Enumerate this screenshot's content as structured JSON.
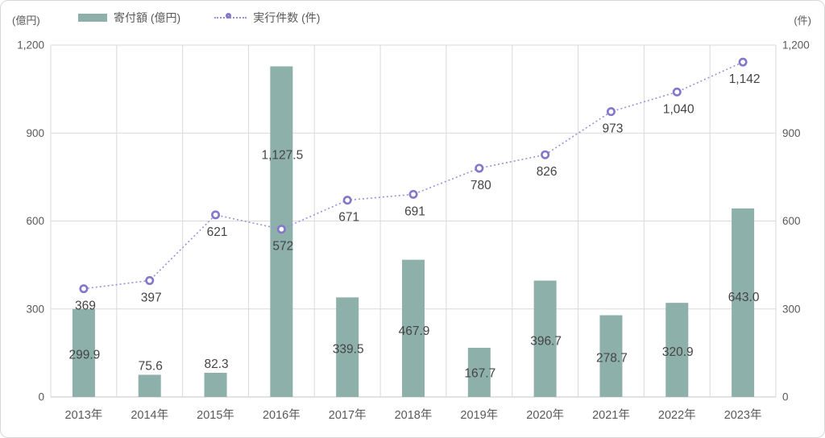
{
  "chart_data": {
    "type": "bar+line combo",
    "categories": [
      "2013年",
      "2014年",
      "2015年",
      "2016年",
      "2017年",
      "2018年",
      "2019年",
      "2020年",
      "2021年",
      "2022年",
      "2023年"
    ],
    "series": [
      {
        "name": "寄付額 (億円)",
        "type": "bar",
        "axis": "left",
        "values": [
          299.9,
          75.6,
          82.3,
          1127.5,
          339.5,
          467.9,
          167.7,
          396.7,
          278.7,
          320.9,
          643.0
        ],
        "value_labels": [
          "299.9",
          "75.6",
          "82.3",
          "1,127.5",
          "339.5",
          "467.9",
          "167.7",
          "396.7",
          "278.7",
          "320.9",
          "643.0"
        ],
        "color": "#8eb0aa"
      },
      {
        "name": "実行件数 (件)",
        "type": "line",
        "axis": "right",
        "values": [
          369,
          397,
          621,
          572,
          671,
          691,
          780,
          826,
          973,
          1040,
          1142
        ],
        "value_labels": [
          "369",
          "397",
          "621",
          "572",
          "671",
          "691",
          "780",
          "826",
          "973",
          "1,040",
          "1,142"
        ],
        "line_color": "#9c91db",
        "marker_color": "#8576c9",
        "marker_fill": "#ffffff",
        "line_style": "dotted"
      }
    ],
    "left_axis": {
      "unit": "(億円)",
      "min": 0,
      "max": 1200,
      "tick_step": 300,
      "tick_labels": [
        "0",
        "300",
        "600",
        "900",
        "1,200"
      ]
    },
    "right_axis": {
      "unit": "(件)",
      "min": 0,
      "max": 1200,
      "tick_step": 300,
      "tick_labels": [
        "0",
        "300",
        "600",
        "900",
        "1,200"
      ]
    },
    "legend_position": "top",
    "grid": true,
    "title": "",
    "colors": {
      "grid": "#d9d9d9",
      "axis_line": "#d9d9d9",
      "tick_text": "#595959",
      "category_text": "#595959",
      "data_label_text": "#444444",
      "background": "#ffffff",
      "frame_border": "#d8d8d8"
    }
  }
}
